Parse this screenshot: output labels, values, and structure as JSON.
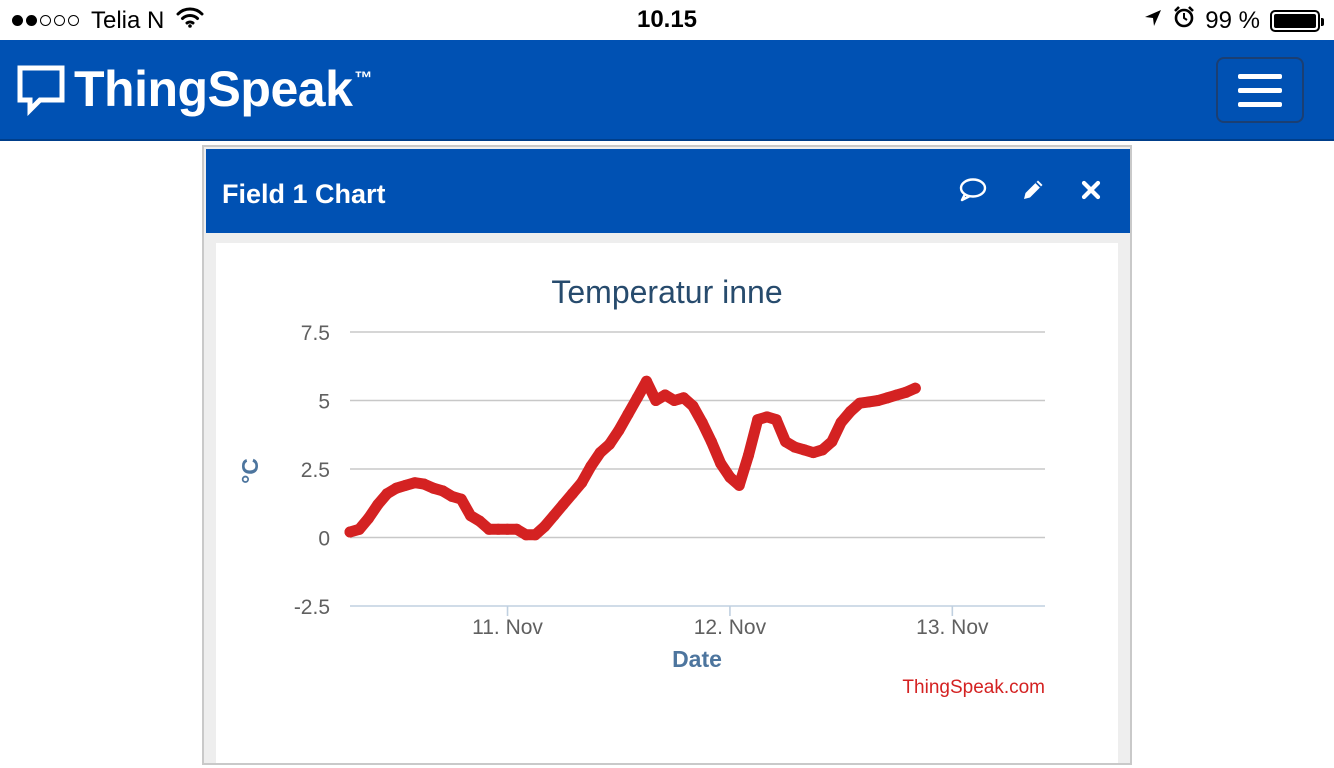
{
  "status_bar": {
    "carrier": "Telia N",
    "time": "10.15",
    "battery": "99 %",
    "signal_bars": 2,
    "icons": [
      "wifi-icon",
      "location-arrow-icon",
      "alarm-icon",
      "battery-icon"
    ]
  },
  "navbar": {
    "brand": "ThingSpeak",
    "trademark": "™",
    "brand_color": "#0051b3",
    "menu_icon": "hamburger-menu-icon"
  },
  "panel": {
    "title": "Field 1 Chart",
    "icons": [
      "comment-icon",
      "pencil-icon",
      "close-icon"
    ]
  },
  "chart_data": {
    "type": "line",
    "title": "Temperatur inne",
    "xlabel": "Date",
    "ylabel": "°C",
    "ylim": [
      -2.5,
      7.5
    ],
    "yticks": [
      "7.5",
      "5",
      "2.5",
      "0",
      "-2.5"
    ],
    "xlim": [
      "10. Nov 07:00",
      "13. Nov 10:00"
    ],
    "xticks": [
      "11. Nov",
      "12. Nov",
      "13. Nov"
    ],
    "grid": true,
    "credit": "ThingSpeak.com",
    "line_color": "#d42222",
    "series": [
      {
        "points": [
          [
            "10. Nov 07:00",
            0.2
          ],
          [
            "10. Nov 08:00",
            0.3
          ],
          [
            "10. Nov 09:00",
            0.7
          ],
          [
            "10. Nov 10:00",
            1.2
          ],
          [
            "10. Nov 11:00",
            1.6
          ],
          [
            "10. Nov 12:00",
            1.8
          ],
          [
            "10. Nov 13:00",
            1.9
          ],
          [
            "10. Nov 14:00",
            2.0
          ],
          [
            "10. Nov 15:00",
            1.95
          ],
          [
            "10. Nov 16:00",
            1.8
          ],
          [
            "10. Nov 17:00",
            1.7
          ],
          [
            "10. Nov 18:00",
            1.5
          ],
          [
            "10. Nov 19:00",
            1.4
          ],
          [
            "10. Nov 20:00",
            0.8
          ],
          [
            "10. Nov 21:00",
            0.6
          ],
          [
            "10. Nov 22:00",
            0.3
          ],
          [
            "10. Nov 23:00",
            0.3
          ],
          [
            "11. Nov 00:00",
            0.3
          ],
          [
            "11. Nov 01:00",
            0.3
          ],
          [
            "11. Nov 02:00",
            0.1
          ],
          [
            "11. Nov 03:00",
            0.1
          ],
          [
            "11. Nov 04:00",
            0.4
          ],
          [
            "11. Nov 05:00",
            0.8
          ],
          [
            "11. Nov 06:00",
            1.2
          ],
          [
            "11. Nov 07:00",
            1.6
          ],
          [
            "11. Nov 08:00",
            2.0
          ],
          [
            "11. Nov 09:00",
            2.6
          ],
          [
            "11. Nov 10:00",
            3.1
          ],
          [
            "11. Nov 11:00",
            3.4
          ],
          [
            "11. Nov 12:00",
            3.9
          ],
          [
            "11. Nov 13:00",
            4.5
          ],
          [
            "11. Nov 14:00",
            5.1
          ],
          [
            "11. Nov 15:00",
            5.7
          ],
          [
            "11. Nov 16:00",
            5.0
          ],
          [
            "11. Nov 17:00",
            5.2
          ],
          [
            "11. Nov 18:00",
            5.0
          ],
          [
            "11. Nov 19:00",
            5.1
          ],
          [
            "11. Nov 20:00",
            4.8
          ],
          [
            "11. Nov 21:00",
            4.2
          ],
          [
            "11. Nov 22:00",
            3.5
          ],
          [
            "11. Nov 23:00",
            2.7
          ],
          [
            "12. Nov 00:00",
            2.2
          ],
          [
            "12. Nov 01:00",
            1.9
          ],
          [
            "12. Nov 02:00",
            3.0
          ],
          [
            "12. Nov 03:00",
            4.3
          ],
          [
            "12. Nov 04:00",
            4.4
          ],
          [
            "12. Nov 05:00",
            4.3
          ],
          [
            "12. Nov 06:00",
            3.5
          ],
          [
            "12. Nov 07:00",
            3.3
          ],
          [
            "12. Nov 08:00",
            3.2
          ],
          [
            "12. Nov 09:00",
            3.1
          ],
          [
            "12. Nov 10:00",
            3.2
          ],
          [
            "12. Nov 11:00",
            3.5
          ],
          [
            "12. Nov 12:00",
            4.2
          ],
          [
            "12. Nov 13:00",
            4.6
          ],
          [
            "12. Nov 14:00",
            4.9
          ],
          [
            "12. Nov 15:00",
            4.95
          ],
          [
            "12. Nov 16:00",
            5.0
          ],
          [
            "12. Nov 17:00",
            5.1
          ],
          [
            "12. Nov 18:00",
            5.2
          ],
          [
            "12. Nov 19:00",
            5.3
          ],
          [
            "12. Nov 20:00",
            5.45
          ]
        ]
      }
    ]
  }
}
